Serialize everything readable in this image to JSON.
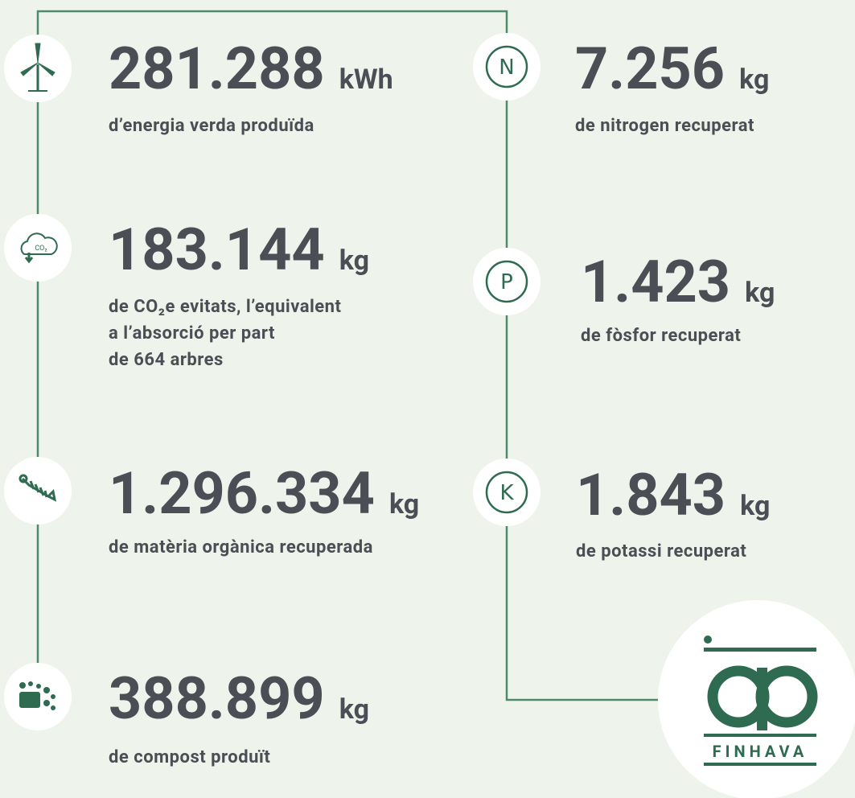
{
  "left": [
    {
      "value": "281.288",
      "unit": "kWh",
      "description": [
        "d’energia verda produïda"
      ]
    },
    {
      "value": "183.144",
      "unit": "kg",
      "description": [
        "de CO₂e evitats, l’equivalent",
        "a l’absorció per part",
        "de 664 arbres"
      ]
    },
    {
      "value": "1.296.334",
      "unit": "kg",
      "description": [
        "de matèria orgànica recuperada"
      ]
    },
    {
      "value": "388.899",
      "unit": "kg",
      "description": [
        "de compost produït"
      ]
    }
  ],
  "right": [
    {
      "letter": "N",
      "value": "7.256",
      "unit": "kg",
      "description": [
        "de nitrogen recuperat"
      ]
    },
    {
      "letter": "P",
      "value": "1.423",
      "unit": "kg",
      "description": [
        "de fòsfor recuperat"
      ]
    },
    {
      "letter": "K",
      "value": "1.843",
      "unit": "kg",
      "description": [
        "de potassi recuperat"
      ]
    }
  ],
  "logo": {
    "text": "FINHAVA"
  }
}
